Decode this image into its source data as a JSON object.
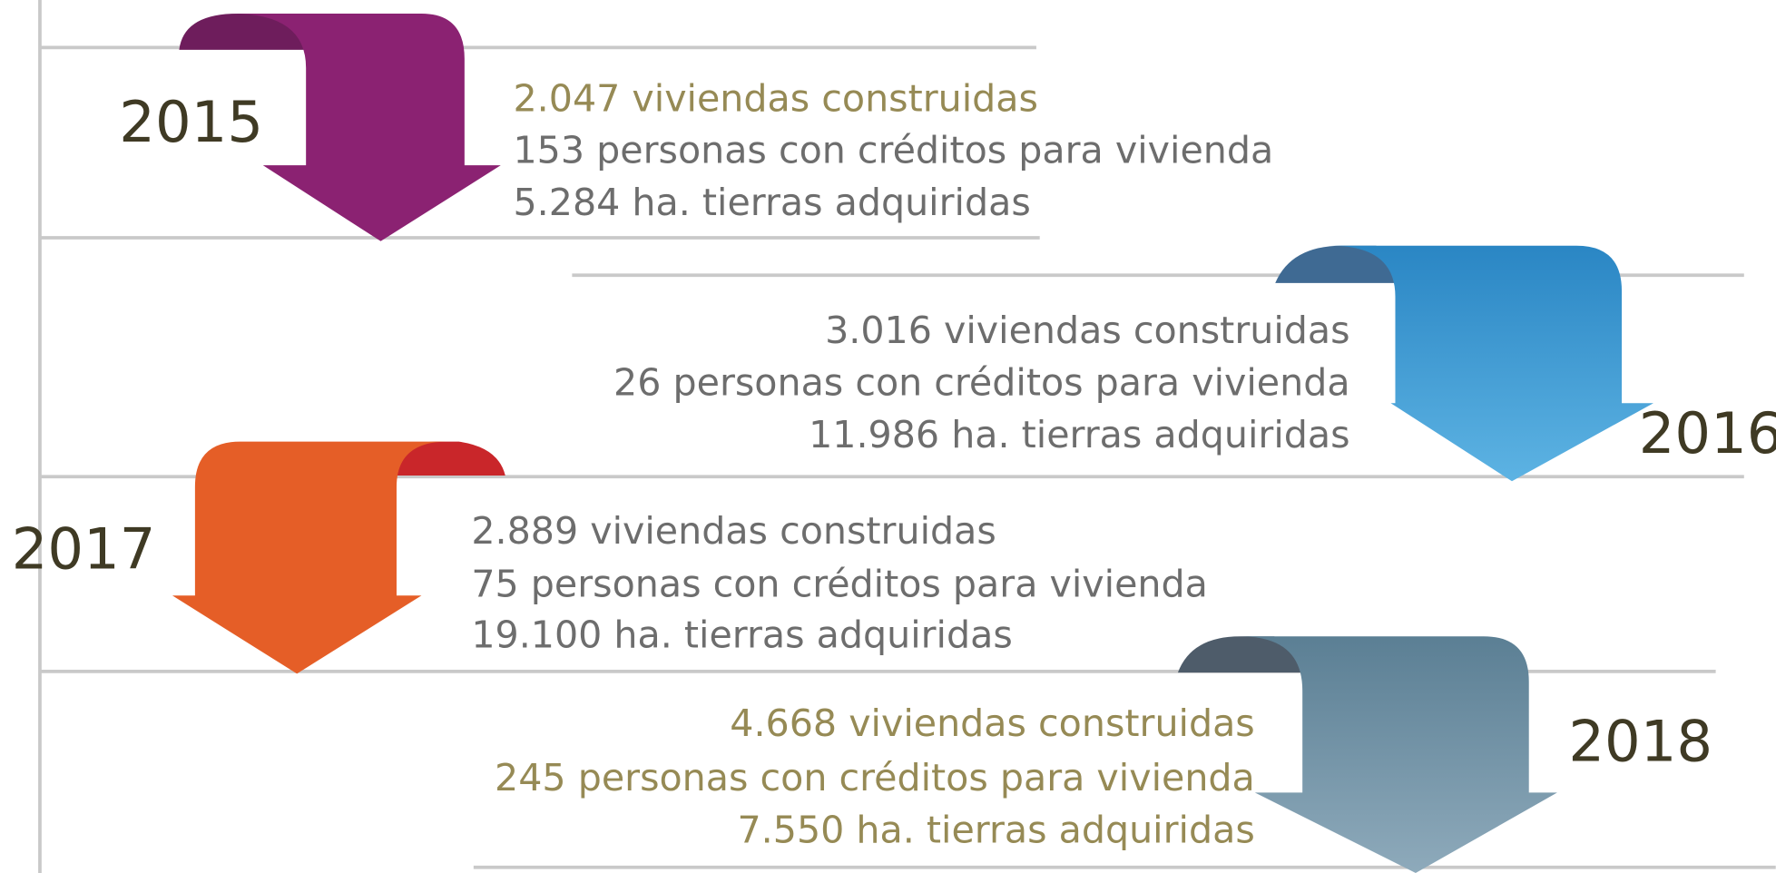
{
  "steps": [
    {
      "year": "2015",
      "lines": [
        "2.047 viviendas construidas",
        "153 personas con créditos para vivienda",
        "5.284 ha. tierras adquiridas"
      ]
    },
    {
      "year": "2016",
      "lines": [
        "3.016 viviendas construidas",
        "26 personas con créditos para vivienda",
        "11.986 ha. tierras adquiridas"
      ]
    },
    {
      "year": "2017",
      "lines": [
        "2.889 viviendas construidas",
        "75 personas con créditos para vivienda",
        "19.100 ha. tierras adquiridas"
      ]
    },
    {
      "year": "2018",
      "lines": [
        "4.668 viviendas construidas",
        "245 personas con créditos para vivienda",
        "7.550 ha. tierras adquiridas"
      ]
    }
  ]
}
